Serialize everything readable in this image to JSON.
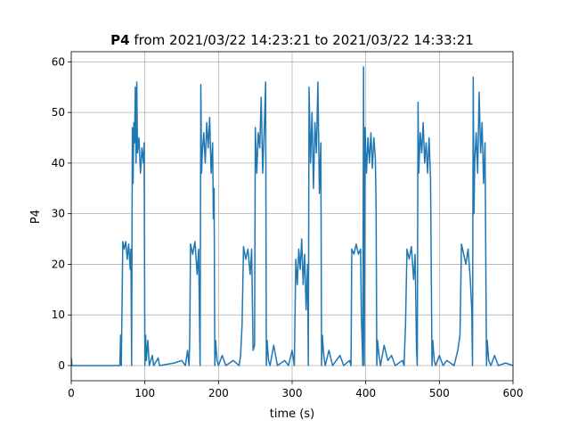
{
  "chart_data": {
    "type": "line",
    "title_bold": "P4",
    "title": "from 2021/03/22 14:23:21 to 2021/03/22 14:33:21",
    "xlabel": "time (s)",
    "ylabel": "P4",
    "color": "#1f77b4",
    "grid": true,
    "xlim": [
      0,
      600
    ],
    "xticks": [
      0,
      100,
      200,
      300,
      400,
      500,
      600
    ],
    "ylim": [
      -3,
      62
    ],
    "yticks": [
      0,
      10,
      20,
      30,
      40,
      50,
      60
    ],
    "x": [
      0,
      1,
      66,
      67,
      68,
      69,
      70,
      72,
      74,
      76,
      78,
      80,
      81,
      82,
      83,
      84,
      85,
      86,
      87,
      88,
      89,
      90,
      92,
      94,
      96,
      98,
      99,
      100,
      101,
      102,
      104,
      106,
      110,
      112,
      118,
      120,
      140,
      150,
      155,
      158,
      160,
      161,
      162,
      165,
      168,
      171,
      173,
      175,
      176,
      177,
      178,
      180,
      182,
      184,
      186,
      188,
      190,
      192,
      193,
      194,
      195,
      196,
      198,
      200,
      205,
      210,
      220,
      228,
      230,
      232,
      234,
      237,
      240,
      243,
      245,
      247,
      249,
      250,
      252,
      254,
      256,
      258,
      260,
      262,
      264,
      265,
      266,
      268,
      270,
      275,
      280,
      290,
      295,
      300,
      303,
      305,
      307,
      309,
      311,
      313,
      315,
      317,
      319,
      321,
      322,
      323,
      325,
      327,
      329,
      331,
      333,
      335,
      337,
      339,
      340,
      341,
      343,
      345,
      350,
      355,
      365,
      370,
      378,
      380,
      381,
      384,
      387,
      390,
      393,
      394,
      396,
      397,
      398,
      399,
      401,
      403,
      405,
      407,
      409,
      411,
      413,
      414,
      415,
      416,
      418,
      420,
      425,
      430,
      435,
      440,
      450,
      452,
      454,
      456,
      459,
      462,
      465,
      467,
      469,
      470,
      471,
      472,
      474,
      476,
      478,
      480,
      482,
      484,
      486,
      488,
      490,
      491,
      493,
      495,
      500,
      505,
      510,
      520,
      525,
      528,
      530,
      533,
      536,
      539,
      542,
      544,
      545,
      546,
      547,
      548,
      550,
      552,
      554,
      556,
      558,
      560,
      562,
      564,
      565,
      567,
      570,
      575,
      580,
      590,
      600
    ],
    "values": [
      1.5,
      0,
      0,
      6,
      0,
      12,
      24.5,
      23,
      24.5,
      21,
      24,
      19,
      23,
      0,
      47,
      36,
      48,
      44,
      55,
      40,
      56,
      42,
      45,
      38,
      43,
      40,
      44,
      0,
      6,
      1,
      5,
      0,
      2,
      0,
      1.5,
      0,
      0.5,
      1,
      0,
      3,
      0,
      6,
      24,
      22,
      24.5,
      18,
      23,
      0,
      55.5,
      38,
      42,
      46,
      40,
      48,
      43,
      49,
      38,
      44,
      29,
      35,
      0,
      5,
      1,
      0,
      2,
      0,
      1,
      0,
      2,
      8,
      23.5,
      21,
      23,
      18,
      23,
      3,
      4,
      47,
      38,
      46,
      43,
      53,
      38,
      46,
      56,
      0,
      5,
      1,
      0,
      4,
      0,
      1,
      0,
      3,
      0,
      21,
      16,
      23,
      19,
      25,
      16,
      22,
      11,
      20,
      0,
      55,
      40,
      50,
      35,
      48,
      42,
      56,
      34,
      44,
      0,
      6,
      2,
      0,
      3,
      0,
      2,
      0,
      1,
      0,
      23,
      22,
      24,
      22,
      23,
      10,
      0,
      59,
      0,
      47,
      38,
      45,
      40,
      46,
      39,
      45,
      41,
      32,
      0,
      5,
      2,
      0,
      4,
      1,
      2,
      0,
      1,
      0,
      8,
      23,
      21,
      23.5,
      17,
      22,
      3,
      0,
      52,
      38,
      46,
      42,
      48,
      40,
      44,
      38,
      45,
      37,
      0,
      5,
      1,
      0,
      2,
      0,
      1,
      0,
      3,
      6,
      24,
      22,
      20,
      23,
      17,
      11,
      0,
      57,
      30,
      40,
      46,
      38,
      54,
      42,
      48,
      36,
      44,
      0,
      5,
      1,
      0,
      2,
      0,
      0.5,
      0
    ]
  }
}
